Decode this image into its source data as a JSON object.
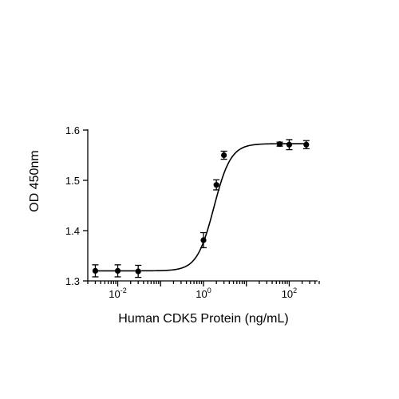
{
  "chart_data": {
    "type": "scatter",
    "title": "",
    "xlabel": "Human CDK5 Protein (ng/mL)",
    "ylabel": "OD 450nm",
    "x_scale": "log",
    "xlim": [
      0.002,
      500
    ],
    "ylim": [
      1.3,
      1.6
    ],
    "x_ticks": [
      {
        "value": 0.01,
        "base": "10",
        "exp": "-2"
      },
      {
        "value": 1,
        "base": "10",
        "exp": "0"
      },
      {
        "value": 100,
        "base": "10",
        "exp": "2"
      }
    ],
    "y_ticks": [
      {
        "value": 1.3,
        "label": "1.3"
      },
      {
        "value": 1.4,
        "label": "1.4"
      },
      {
        "value": 1.5,
        "label": "1.5"
      },
      {
        "value": 1.6,
        "label": "1.6"
      }
    ],
    "grid": false,
    "series": [
      {
        "points": [
          {
            "x": 0.003,
            "y": 1.32,
            "err": 0.012
          },
          {
            "x": 0.01,
            "y": 1.32,
            "err": 0.012
          },
          {
            "x": 0.03,
            "y": 1.319,
            "err": 0.012
          },
          {
            "x": 1,
            "y": 1.381,
            "err": 0.015
          },
          {
            "x": 2,
            "y": 1.491,
            "err": 0.01
          },
          {
            "x": 3,
            "y": 1.55,
            "err": 0.008
          },
          {
            "x": 60,
            "y": 1.572,
            "err": 0.004
          },
          {
            "x": 100,
            "y": 1.571,
            "err": 0.01
          },
          {
            "x": 250,
            "y": 1.571,
            "err": 0.008
          }
        ],
        "fit": {
          "model": "4PL",
          "bottom": 1.32,
          "top": 1.573,
          "ec50": 1.75,
          "hill": 2.2
        },
        "color": "#000000"
      }
    ]
  }
}
